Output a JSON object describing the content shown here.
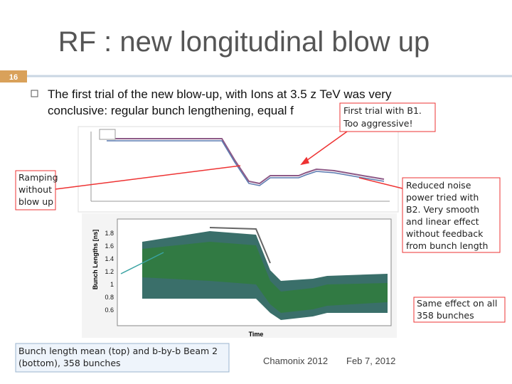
{
  "slide": {
    "title": "RF : new longitudinal blow up",
    "number": "16",
    "bullet": [
      "The first trial of the new blow-up, with Ions at 3.5 z TeV was very",
      "conclusive: regular bunch lengthening, equal f"
    ],
    "callouts": {
      "first_trial": [
        "First trial with B1.",
        "Too aggressive!"
      ],
      "ramping": [
        "Ramping",
        "without",
        "blow up"
      ],
      "reduced": [
        "Reduced noise",
        "power tried with",
        "B2. Very smooth",
        "and linear effect",
        "without feedback",
        "from bunch length"
      ],
      "same": [
        "Same effect on all",
        "358 bunches"
      ]
    },
    "lower_plot": {
      "yticks": [
        "1.8",
        "1.6",
        "1.4",
        "1.2",
        "1",
        "0.8",
        "0.6"
      ],
      "ylabel": "Bunch Lengths [ns]",
      "xlabel": "Time"
    },
    "caption": [
      "Bunch length mean (top) and b-by-b Beam 2",
      "(bottom), 358 bunches"
    ],
    "footer": {
      "event": "Chamonix 2012",
      "date": "Feb 7, 2012"
    }
  }
}
